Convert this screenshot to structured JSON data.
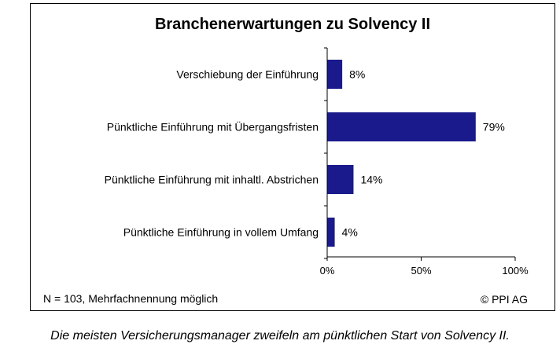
{
  "chart_data": {
    "type": "bar",
    "orientation": "horizontal",
    "title": "Branchenerwartungen zu Solvency II",
    "categories": [
      "Verschiebung der Einführung",
      "Pünktliche Einführung mit Übergangsfristen",
      "Pünktliche Einführung mit inhaltl. Abstrichen",
      "Pünktliche Einführung in vollem Umfang"
    ],
    "values": [
      8,
      79,
      14,
      4
    ],
    "value_labels": [
      "8%",
      "79%",
      "14%",
      "4%"
    ],
    "xlim": [
      0,
      100
    ],
    "x_ticks": [
      0,
      50,
      100
    ],
    "x_tick_labels": [
      "0%",
      "50%",
      "100%"
    ],
    "grid": false,
    "bar_color": "#1a1a8c"
  },
  "footnote": "N = 103,  Mehrfachnennung möglich",
  "copyright": "© PPI AG",
  "caption": "Die meisten Versicherungsmanager zweifeln am pünktlichen Start von Solvency II."
}
